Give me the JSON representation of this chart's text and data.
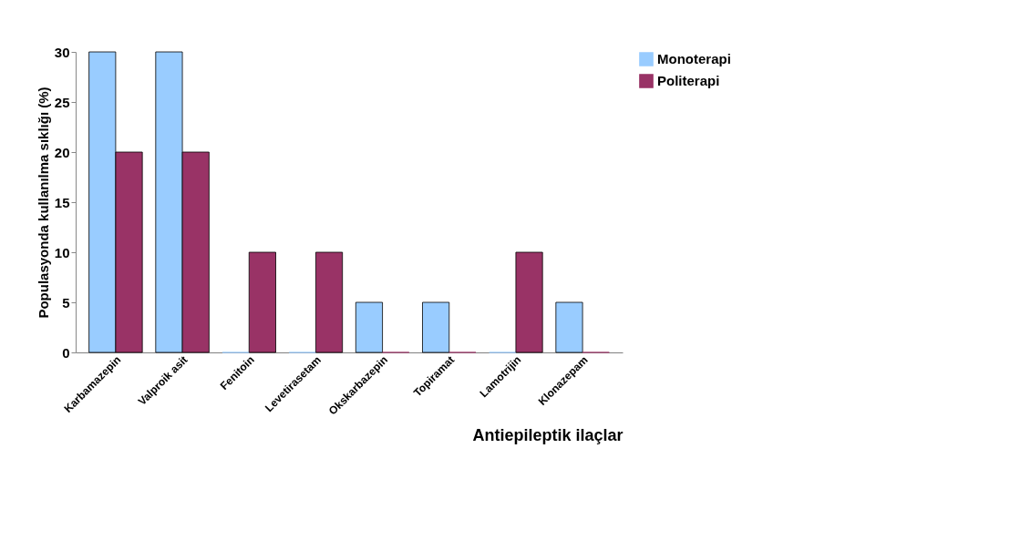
{
  "chart_data": {
    "type": "bar",
    "xlabel": "Antiepileptik ilaçlar",
    "ylabel": "Populasyonda kullanılma sıklığı (%)",
    "categories": [
      "Karbamazepin",
      "Valproik asit",
      "Fenitoin",
      "Levetirasetam",
      "Okskarbazepin",
      "Topiramat",
      "Lamotrijin",
      "Klonazepam"
    ],
    "series": [
      {
        "name": "Monoterapi",
        "color": "#99ccff",
        "values": [
          30,
          30,
          0,
          0,
          5,
          5,
          0,
          5
        ]
      },
      {
        "name": "Politerapi",
        "color": "#993366",
        "values": [
          20,
          20,
          10,
          10,
          0,
          0,
          10,
          0
        ]
      }
    ],
    "ylim": [
      0,
      30
    ],
    "yticks": [
      0,
      5,
      10,
      15,
      20,
      25,
      30
    ],
    "grid": false,
    "legend": "right"
  }
}
